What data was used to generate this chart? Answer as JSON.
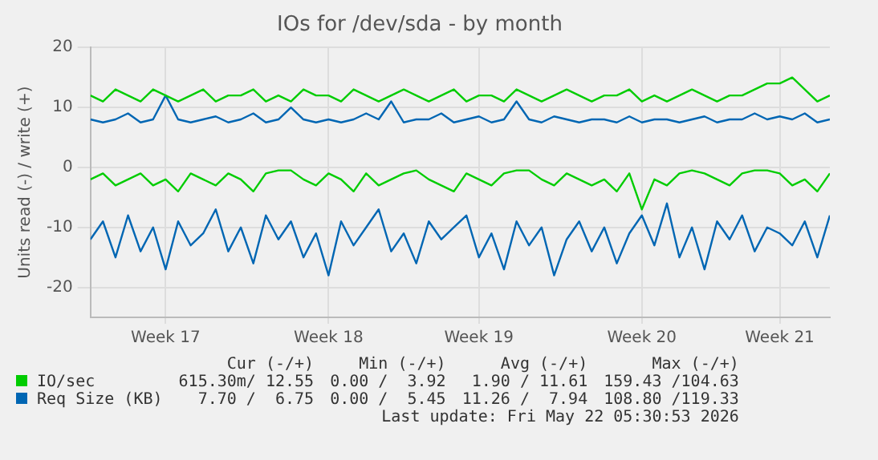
{
  "chart_data": {
    "type": "line",
    "title": "IOs for /dev/sda - by month",
    "ylabel": "Units read (-) / write (+)",
    "categories": [
      null,
      null,
      null,
      null,
      null,
      null,
      "Week 17",
      null,
      null,
      null,
      null,
      null,
      null,
      null,
      null,
      null,
      null,
      null,
      null,
      "Week 18",
      null,
      null,
      null,
      null,
      null,
      null,
      null,
      null,
      null,
      null,
      null,
      "Week 19",
      null,
      null,
      null,
      null,
      null,
      null,
      null,
      null,
      null,
      null,
      null,
      null,
      "Week 20",
      null,
      null,
      null,
      null,
      null,
      null,
      null,
      null,
      null,
      null,
      "Week 21",
      null,
      null,
      null,
      null
    ],
    "series": [
      {
        "name": "IO/sec",
        "color": "#00cc00",
        "values": [
          12,
          11,
          13,
          12,
          11,
          13,
          12,
          11,
          12,
          13,
          11,
          12,
          12,
          13,
          11,
          12,
          11,
          13,
          12,
          12,
          11,
          13,
          12,
          11,
          12,
          13,
          12,
          11,
          12,
          13,
          11,
          12,
          12,
          11,
          13,
          12,
          11,
          12,
          13,
          12,
          11,
          12,
          12,
          13,
          11,
          12,
          11,
          12,
          13,
          12,
          11,
          12,
          12,
          13,
          14,
          14,
          15,
          13,
          11,
          12
        ]
      },
      {
        "name": "Req Size (KB)",
        "color": "#0066b3",
        "values": [
          8,
          7.5,
          8,
          9,
          7.5,
          8,
          12,
          8,
          7.5,
          8,
          8.5,
          7.5,
          8,
          9,
          7.5,
          8,
          10,
          8,
          7.5,
          8,
          7.5,
          8,
          9,
          8,
          11,
          7.5,
          8,
          8,
          9,
          7.5,
          8,
          8.5,
          7.5,
          8,
          11,
          8,
          7.5,
          8.5,
          8,
          7.5,
          8,
          8,
          7.5,
          8.5,
          7.5,
          8,
          8,
          7.5,
          8,
          8.5,
          7.5,
          8,
          8,
          9,
          8,
          8.5,
          8,
          9,
          7.5,
          8
        ]
      },
      {
        "color": "#00cc00",
        "values": [
          -2,
          -1,
          -3,
          -2,
          -1,
          -3,
          -2,
          -4,
          -1,
          -2,
          -3,
          -1,
          -2,
          -4,
          -1,
          -0.5,
          -0.5,
          -2,
          -3,
          -1,
          -2,
          -4,
          -1,
          -3,
          -2,
          -1,
          -0.5,
          -2,
          -3,
          -4,
          -1,
          -2,
          -3,
          -1,
          -0.5,
          -0.5,
          -2,
          -3,
          -1,
          -2,
          -3,
          -2,
          -4,
          -1,
          -7,
          -2,
          -3,
          -1,
          -0.5,
          -1,
          -2,
          -3,
          -1,
          -0.5,
          -0.5,
          -1,
          -3,
          -2,
          -4,
          -1
        ]
      },
      {
        "color": "#0066b3",
        "values": [
          -12,
          -9,
          -15,
          -8,
          -14,
          -10,
          -17,
          -9,
          -13,
          -11,
          -7,
          -14,
          -10,
          -16,
          -8,
          -12,
          -9,
          -15,
          -11,
          -18,
          -9,
          -13,
          -10,
          -7,
          -14,
          -11,
          -16,
          -9,
          -12,
          -10,
          -8,
          -15,
          -11,
          -17,
          -9,
          -13,
          -10,
          -18,
          -12,
          -9,
          -14,
          -10,
          -16,
          -11,
          -8,
          -13,
          -6,
          -15,
          -10,
          -17,
          -9,
          -12,
          -8,
          -14,
          -10,
          -11,
          -13,
          -9,
          -15,
          -8
        ]
      }
    ],
    "ylim": [
      -25,
      20
    ],
    "yticks": [
      -20,
      -10,
      0,
      10,
      20
    ],
    "grid": true,
    "legend": "bottom left",
    "marker": "none",
    "line_style": "solid",
    "annotations": [
      "Cur (-/+)",
      "Min (-/+)",
      "Avg (-/+)",
      "Max (-/+)",
      "615.30m/ 12.55",
      "0.00 /  3.92",
      "1.90 / 11.61",
      "159.43 /104.63",
      "7.70 /  6.75",
      "0.00 /  5.45",
      "11.26 /  7.94",
      "108.80 /119.33",
      "Last update: Fri May 22 05:30:53 2026"
    ]
  }
}
